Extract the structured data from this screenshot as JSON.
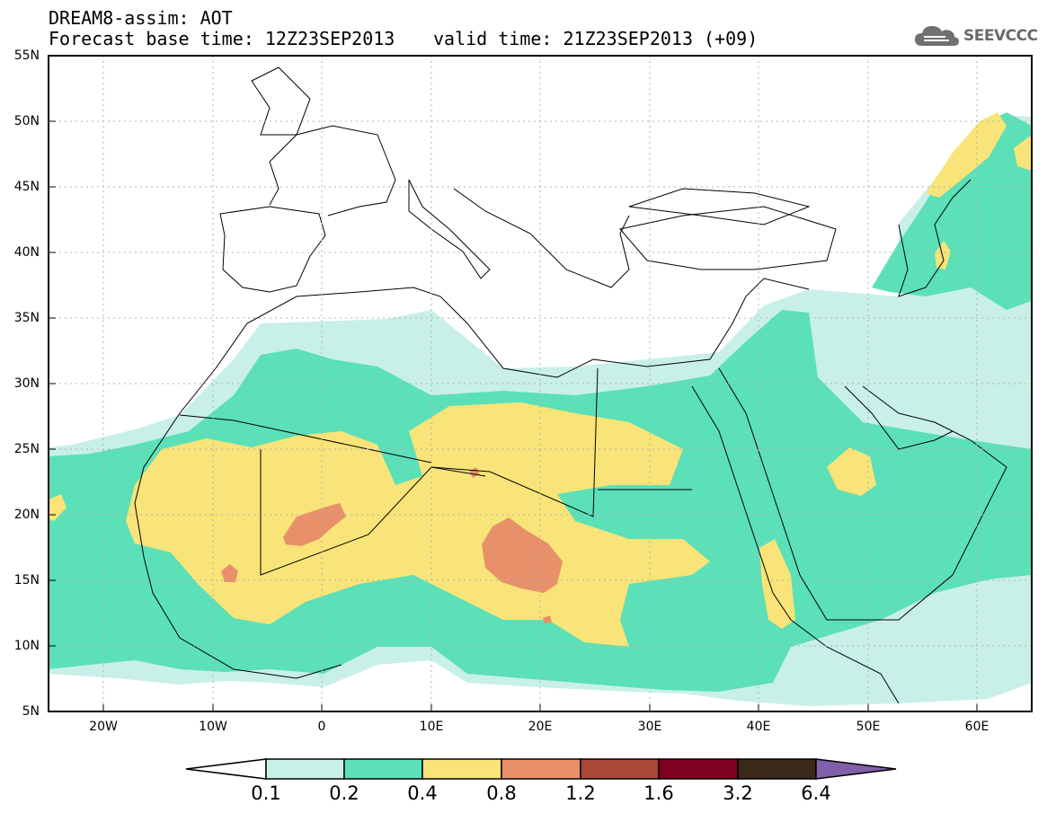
{
  "header": {
    "line1": "DREAM8-assim: AOT",
    "line2": "Forecast base time: 12Z23SEP2013",
    "valid": "valid time: 21Z23SEP2013 (+09)"
  },
  "logo": {
    "text": "SEEVCCC",
    "icon": "cloud-icon"
  },
  "map": {
    "lon_range": [
      -25,
      65
    ],
    "lat_range": [
      5,
      55
    ],
    "y_ticks": [
      "55N",
      "50N",
      "45N",
      "40N",
      "35N",
      "30N",
      "25N",
      "20N",
      "15N",
      "10N",
      "5N"
    ],
    "x_ticks": [
      "20W",
      "10W",
      "0",
      "10E",
      "20E",
      "30E",
      "40E",
      "50E",
      "60E"
    ],
    "colorbar": {
      "labels": [
        "0.1",
        "0.2",
        "0.4",
        "0.8",
        "1.2",
        "1.6",
        "3.2",
        "6.4"
      ],
      "colors": [
        "#ffffff",
        "#c8f0e8",
        "#5ce0b8",
        "#f8e478",
        "#e8906a",
        "#a84838",
        "#800020",
        "#3a2818",
        "#8060a8"
      ]
    }
  }
}
